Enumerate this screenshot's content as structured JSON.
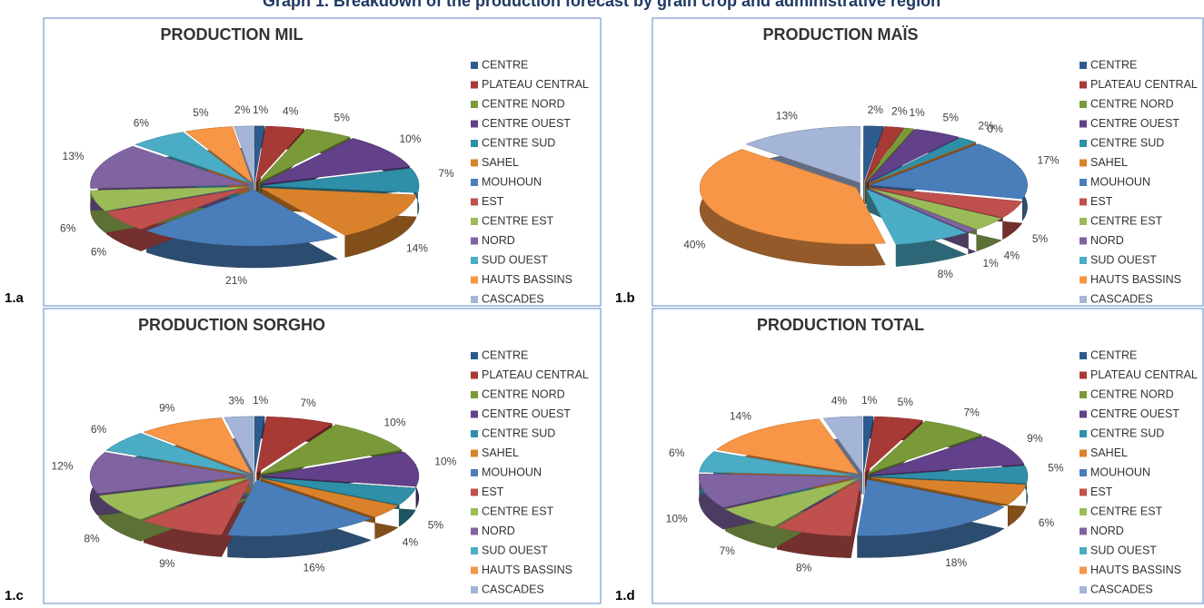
{
  "title": "Graph 1. Breakdown of the production forecast by grain crop and administrative region",
  "chart_data": [
    {
      "type": "pie",
      "label": "1.a",
      "title": "PRODUCTION MIL",
      "categories": [
        "CENTRE",
        "PLATEAU CENTRAL",
        "CENTRE NORD",
        "CENTRE OUEST",
        "CENTRE SUD",
        "SAHEL",
        "MOUHOUN",
        "EST",
        "CENTRE EST",
        "NORD",
        "SUD OUEST",
        "HAUTS BASSINS",
        "CASCADES"
      ],
      "values": [
        1,
        4,
        5,
        10,
        7,
        14,
        21,
        6,
        6,
        13,
        6,
        5,
        2
      ],
      "value_labels": [
        "1%",
        "4%",
        "5%",
        "10%",
        "7%",
        "14%",
        "21%",
        "6%",
        "6%",
        "13%",
        "6%",
        "5%",
        "2%"
      ],
      "colors": [
        "#2e5b8e",
        "#a83a36",
        "#7a9a3a",
        "#63418a",
        "#2f8fa8",
        "#d9822b",
        "#4a7ebb",
        "#c0504d",
        "#9bbb59",
        "#8064a2",
        "#4bacc6",
        "#f79646",
        "#a5b5d8"
      ]
    },
    {
      "type": "pie",
      "label": "1.b",
      "title": "PRODUCTION MAÏS",
      "categories": [
        "CENTRE",
        "PLATEAU CENTRAL",
        "CENTRE NORD",
        "CENTRE OUEST",
        "CENTRE SUD",
        "SAHEL",
        "MOUHOUN",
        "EST",
        "CENTRE EST",
        "NORD",
        "SUD OUEST",
        "HAUTS BASSINS",
        "CASCADES"
      ],
      "values": [
        2,
        2,
        1,
        5,
        2,
        0,
        17,
        5,
        4,
        1,
        8,
        40,
        13
      ],
      "value_labels": [
        "2%",
        "2%",
        "1%",
        "5%",
        "2%",
        "0%",
        "17%",
        "5%",
        "4%",
        "1%",
        "8%",
        "40%",
        "13%"
      ],
      "colors": [
        "#2e5b8e",
        "#a83a36",
        "#7a9a3a",
        "#63418a",
        "#2f8fa8",
        "#d9822b",
        "#4a7ebb",
        "#c0504d",
        "#9bbb59",
        "#8064a2",
        "#4bacc6",
        "#f79646",
        "#a5b5d8"
      ]
    },
    {
      "type": "pie",
      "label": "1.c",
      "title": "PRODUCTION SORGHO",
      "categories": [
        "CENTRE",
        "PLATEAU CENTRAL",
        "CENTRE NORD",
        "CENTRE OUEST",
        "CENTRE SUD",
        "SAHEL",
        "MOUHOUN",
        "EST",
        "CENTRE EST",
        "NORD",
        "SUD OUEST",
        "HAUTS BASSINS",
        "CASCADES"
      ],
      "values": [
        1,
        7,
        10,
        10,
        5,
        4,
        16,
        9,
        8,
        12,
        6,
        9,
        3
      ],
      "value_labels": [
        "1%",
        "7%",
        "10%",
        "10%",
        "5%",
        "4%",
        "16%",
        "9%",
        "8%",
        "12%",
        "6%",
        "9%",
        "3%"
      ],
      "colors": [
        "#2e5b8e",
        "#a83a36",
        "#7a9a3a",
        "#63418a",
        "#2f8fa8",
        "#d9822b",
        "#4a7ebb",
        "#c0504d",
        "#9bbb59",
        "#8064a2",
        "#4bacc6",
        "#f79646",
        "#a5b5d8"
      ]
    },
    {
      "type": "pie",
      "label": "1.d",
      "title": "PRODUCTION TOTAL",
      "categories": [
        "CENTRE",
        "PLATEAU CENTRAL",
        "CENTRE NORD",
        "CENTRE OUEST",
        "CENTRE SUD",
        "SAHEL",
        "MOUHOUN",
        "EST",
        "CENTRE EST",
        "NORD",
        "SUD OUEST",
        "HAUTS BASSINS",
        "CASCADES"
      ],
      "values": [
        1,
        5,
        7,
        9,
        5,
        6,
        18,
        8,
        7,
        10,
        6,
        14,
        4
      ],
      "value_labels": [
        "1%",
        "5%",
        "7%",
        "9%",
        "5%",
        "6%",
        "18%",
        "8%",
        "7%",
        "10%",
        "6%",
        "14%",
        "4%"
      ],
      "colors": [
        "#2e5b8e",
        "#a83a36",
        "#7a9a3a",
        "#63418a",
        "#2f8fa8",
        "#d9822b",
        "#4a7ebb",
        "#c0504d",
        "#9bbb59",
        "#8064a2",
        "#4bacc6",
        "#f79646",
        "#a5b5d8"
      ]
    }
  ]
}
